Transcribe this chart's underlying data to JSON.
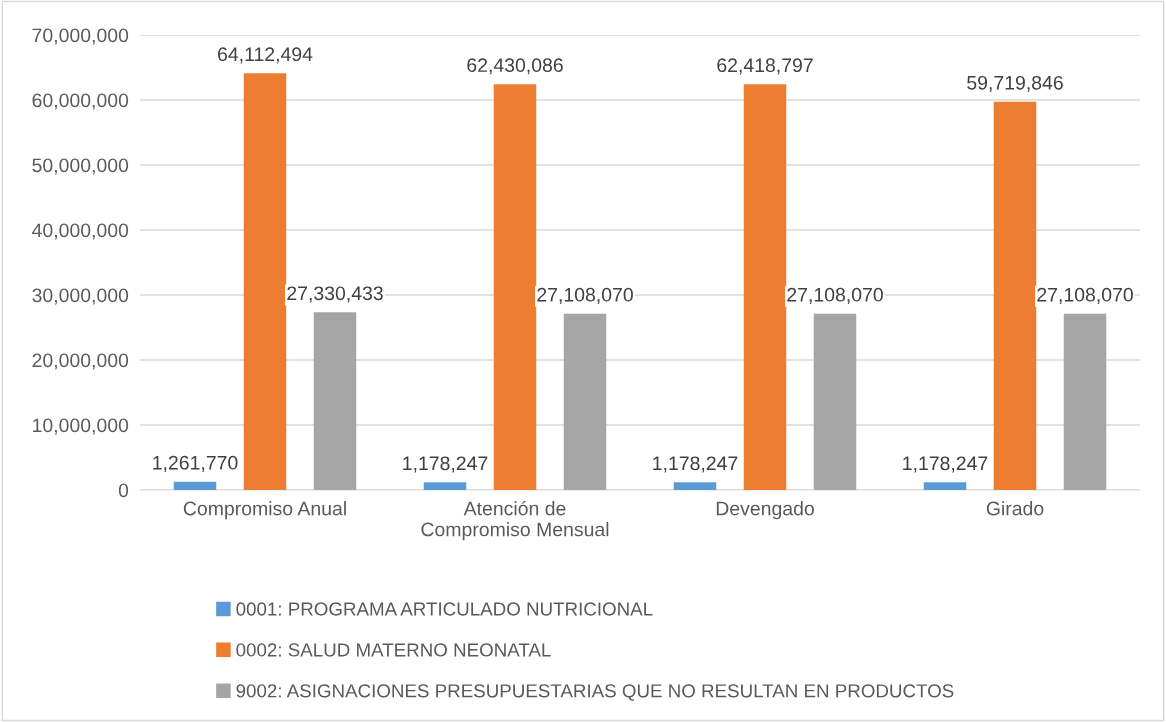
{
  "chart_data": {
    "type": "bar",
    "categories": [
      "Compromiso Anual",
      "Atención de\nCompromiso Mensual",
      "Devengado",
      "Girado"
    ],
    "series": [
      {
        "name": "0001: PROGRAMA ARTICULADO NUTRICIONAL",
        "color": "#5b9bd5",
        "values": [
          1261770,
          1178247,
          1178247,
          1178247
        ],
        "value_labels": [
          "1,261,770",
          "1,178,247",
          "1,178,247",
          "1,178,247"
        ]
      },
      {
        "name": "0002: SALUD MATERNO NEONATAL",
        "color": "#ed7d31",
        "values": [
          64112494,
          62430086,
          62418797,
          59719846
        ],
        "value_labels": [
          "64,112,494",
          "62,430,086",
          "62,418,797",
          "59,719,846"
        ]
      },
      {
        "name": "9002: ASIGNACIONES PRESUPUESTARIAS QUE NO RESULTAN EN PRODUCTOS",
        "color": "#a5a5a5",
        "values": [
          27330433,
          27108070,
          27108070,
          27108070
        ],
        "value_labels": [
          "27,330,433",
          "27,108,070",
          "27,108,070",
          "27,108,070"
        ]
      }
    ],
    "ylim": [
      0,
      70000000
    ],
    "yticks": [
      {
        "value": 0,
        "label": "0"
      },
      {
        "value": 10000000,
        "label": "10,000,000"
      },
      {
        "value": 20000000,
        "label": "20,000,000"
      },
      {
        "value": 30000000,
        "label": "30,000,000"
      },
      {
        "value": 40000000,
        "label": "40,000,000"
      },
      {
        "value": 50000000,
        "label": "50,000,000"
      },
      {
        "value": 60000000,
        "label": "60,000,000"
      },
      {
        "value": 70000000,
        "label": "70,000,000"
      }
    ],
    "grid": "y",
    "legend": "bottom"
  }
}
